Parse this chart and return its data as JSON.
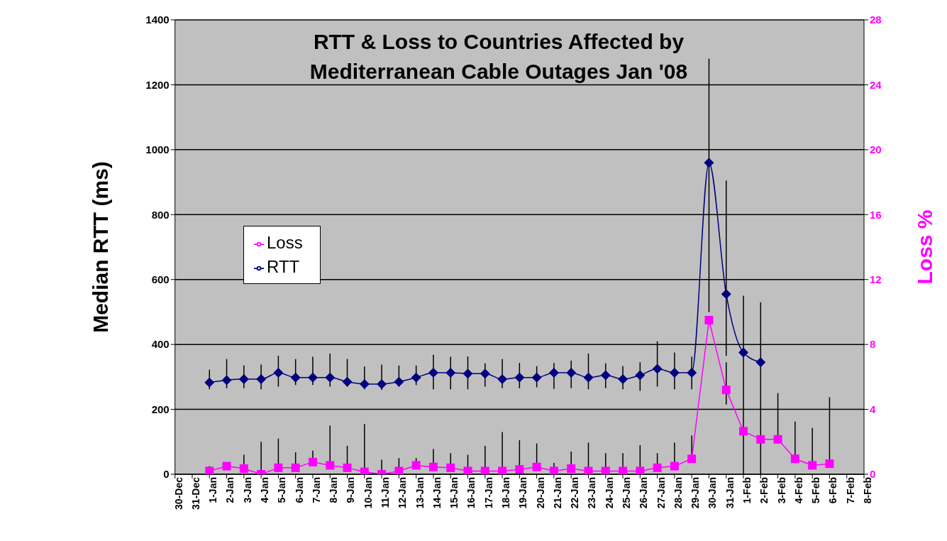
{
  "chart_data": {
    "type": "line",
    "title": "RTT & Loss to Countries Affected by Mediterranean Cable Outages Jan '08",
    "ylabel": "Median RTT (ms)",
    "y2label": "Loss %",
    "categories": [
      "30-Dec",
      "31-Dec",
      "1-Jan",
      "2-Jan",
      "3-Jan",
      "4-Jan",
      "5-Jan",
      "6-Jan",
      "7-Jan",
      "8-Jan",
      "9-Jan",
      "10-Jan",
      "11-Jan",
      "12-Jan",
      "13-Jan",
      "14-Jan",
      "15-Jan",
      "16-Jan",
      "17-Jan",
      "18-Jan",
      "19-Jan",
      "20-Jan",
      "21-Jan",
      "22-Jan",
      "23-Jan",
      "24-Jan",
      "25-Jan",
      "26-Jan",
      "27-Jan",
      "28-Jan",
      "29-Jan",
      "30-Jan",
      "31-Jan",
      "1-Feb",
      "2-Feb",
      "3-Feb",
      "4-Feb",
      "5-Feb",
      "6-Feb",
      "7-Feb",
      "8-Feb"
    ],
    "series": [
      {
        "name": "RTT",
        "color": "#000080",
        "marker": "diamond",
        "values": [
          null,
          null,
          283,
          290,
          293,
          293,
          313,
          298,
          298,
          298,
          285,
          278,
          278,
          285,
          298,
          313,
          313,
          310,
          310,
          293,
          298,
          298,
          313,
          313,
          298,
          305,
          293,
          305,
          325,
          313,
          313,
          960,
          555,
          375,
          345,
          null,
          null,
          null,
          null,
          null,
          null
        ],
        "errors": [
          null,
          null,
          [
            262,
            322
          ],
          [
            265,
            355
          ],
          [
            265,
            335
          ],
          [
            262,
            338
          ],
          [
            270,
            365
          ],
          [
            275,
            355
          ],
          [
            275,
            362
          ],
          [
            270,
            372
          ],
          [
            270,
            355
          ],
          [
            262,
            332
          ],
          [
            260,
            338
          ],
          [
            270,
            335
          ],
          [
            275,
            335
          ],
          [
            262,
            368
          ],
          [
            262,
            362
          ],
          [
            262,
            363
          ],
          [
            270,
            342
          ],
          [
            265,
            355
          ],
          [
            265,
            343
          ],
          [
            268,
            333
          ],
          [
            263,
            343
          ],
          [
            265,
            350
          ],
          [
            262,
            372
          ],
          [
            265,
            342
          ],
          [
            262,
            333
          ],
          [
            257,
            345
          ],
          [
            270,
            410
          ],
          [
            262,
            375
          ],
          [
            262,
            362
          ],
          [
            500,
            1280
          ],
          [
            365,
            905
          ],
          [
            0,
            550
          ],
          [
            0,
            530
          ],
          null,
          null,
          null,
          null,
          null,
          null
        ]
      },
      {
        "name": "Loss",
        "color": "#ff00ff",
        "marker": "square",
        "axis": "y2",
        "values": [
          null,
          null,
          0.2,
          0.5,
          0.35,
          0,
          0.4,
          0.4,
          0.75,
          0.55,
          0.4,
          0.15,
          0,
          0.2,
          0.55,
          0.45,
          0.4,
          0.2,
          0.2,
          0.2,
          0.3,
          0.45,
          0.2,
          0.35,
          0.2,
          0.2,
          0.2,
          0.2,
          0.4,
          0.5,
          0.95,
          9.5,
          5.2,
          2.65,
          2.15,
          2.15,
          0.95,
          0.55,
          0.65,
          null,
          null
        ],
        "errors": [
          null,
          null,
          [
            0.2,
            0.5
          ],
          [
            0.5,
            0.6
          ],
          [
            0.35,
            1.2
          ],
          [
            0,
            2
          ],
          [
            0.4,
            2.2
          ],
          [
            0.4,
            1.35
          ],
          [
            0.5,
            1.45
          ],
          [
            0.55,
            3
          ],
          [
            0.4,
            1.75
          ],
          [
            0.15,
            3.1
          ],
          [
            0,
            0.9
          ],
          [
            0.2,
            1
          ],
          [
            0.55,
            1
          ],
          [
            0.45,
            1.55
          ],
          [
            0.4,
            1.3
          ],
          [
            0.2,
            1.2
          ],
          [
            0.2,
            1.75
          ],
          [
            0.2,
            2.6
          ],
          [
            0.3,
            2.1
          ],
          [
            0.45,
            1.9
          ],
          [
            0.2,
            0.7
          ],
          [
            0.35,
            1.4
          ],
          [
            0.2,
            1.95
          ],
          [
            0.2,
            1.3
          ],
          [
            0.2,
            1.3
          ],
          [
            0.2,
            1.8
          ],
          [
            0.4,
            1.3
          ],
          [
            0.5,
            1.95
          ],
          [
            0.7,
            2.4
          ],
          null,
          [
            4.3,
            6.9
          ],
          null,
          null,
          [
            2.15,
            5
          ],
          [
            0.95,
            3.25
          ],
          [
            0.55,
            2.85
          ],
          [
            0.65,
            4.75
          ],
          null,
          null
        ]
      }
    ],
    "ylim": [
      0,
      1400
    ],
    "yticks": [
      0,
      200,
      400,
      600,
      800,
      1000,
      1200,
      1400
    ],
    "y2lim": [
      0,
      28
    ],
    "y2ticks": [
      0,
      4,
      8,
      12,
      16,
      20,
      24,
      28
    ],
    "grid": "y",
    "legend": "left"
  }
}
